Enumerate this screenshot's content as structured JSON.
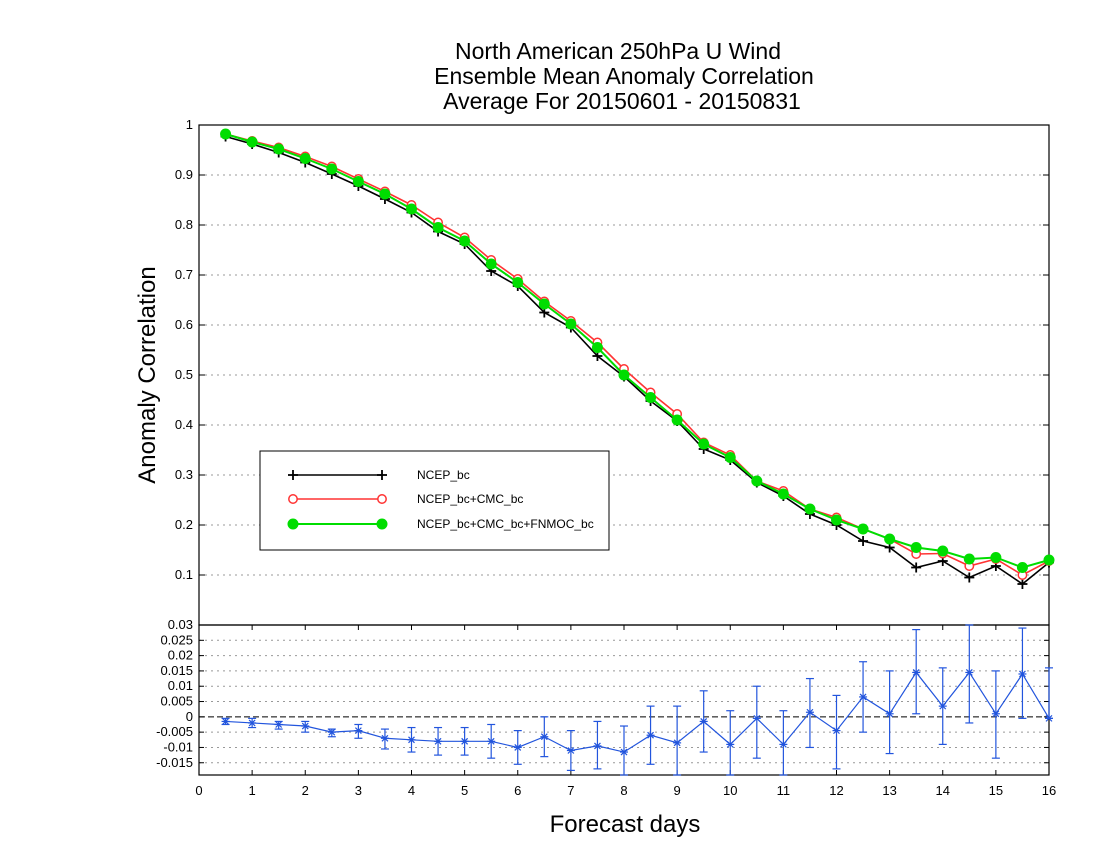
{
  "title_lines": [
    "North American 250hPa U Wind",
    "Ensemble Mean Anomaly Correlation",
    "Average For 20150601 - 20150831"
  ],
  "colors": {
    "ncep": "#000000",
    "cmc": "#ff3333",
    "fnmoc": "#00dd00",
    "diff": "#2255dd",
    "grid": "#999999"
  },
  "chart_data": [
    {
      "type": "line",
      "xlabel": "",
      "ylabel": "Anomaly Correlation",
      "xlim": [
        0,
        16
      ],
      "ylim": [
        0,
        1
      ],
      "yticks": [
        "0.1",
        "0.2",
        "0.3",
        "0.4",
        "0.5",
        "0.6",
        "0.7",
        "0.8",
        "0.9",
        "1"
      ],
      "grid": true,
      "legend_position": "left-middle",
      "x": [
        0.5,
        1,
        1.5,
        2,
        2.5,
        3,
        3.5,
        4,
        4.5,
        5,
        5.5,
        6,
        6.5,
        7,
        7.5,
        8,
        8.5,
        9,
        9.5,
        10,
        10.5,
        11,
        11.5,
        12,
        12.5,
        13,
        13.5,
        14,
        14.5,
        15,
        15.5,
        16
      ],
      "series": [
        {
          "name": "NCEP_bc",
          "marker": "plus",
          "values": [
            0.977,
            0.962,
            0.945,
            0.925,
            0.902,
            0.878,
            0.852,
            0.825,
            0.787,
            0.762,
            0.708,
            0.678,
            0.625,
            0.595,
            0.538,
            0.497,
            0.448,
            0.408,
            0.352,
            0.33,
            0.285,
            0.258,
            0.222,
            0.2,
            0.168,
            0.155,
            0.115,
            0.128,
            0.095,
            0.118,
            0.082,
            0.125
          ]
        },
        {
          "name": "NCEP_bc+CMC_bc",
          "marker": "open-circle",
          "values": [
            0.982,
            0.968,
            0.955,
            0.937,
            0.917,
            0.892,
            0.867,
            0.84,
            0.805,
            0.775,
            0.73,
            0.692,
            0.647,
            0.608,
            0.565,
            0.512,
            0.465,
            0.422,
            0.365,
            0.34,
            0.288,
            0.268,
            0.232,
            0.215,
            0.192,
            0.172,
            0.142,
            0.143,
            0.118,
            0.132,
            0.1,
            0.128
          ]
        },
        {
          "name": "NCEP_bc+CMC_bc+FNMOC_bc",
          "marker": "filled-circle",
          "values": [
            0.982,
            0.966,
            0.952,
            0.933,
            0.912,
            0.887,
            0.862,
            0.832,
            0.795,
            0.768,
            0.722,
            0.685,
            0.642,
            0.602,
            0.555,
            0.5,
            0.455,
            0.41,
            0.362,
            0.335,
            0.288,
            0.262,
            0.232,
            0.21,
            0.192,
            0.172,
            0.155,
            0.148,
            0.132,
            0.135,
            0.115,
            0.13
          ]
        }
      ]
    },
    {
      "type": "line",
      "xlabel": "Forecast days",
      "ylabel": "",
      "xlim": [
        0,
        16
      ],
      "ylim": [
        -0.019,
        0.03
      ],
      "xticks": [
        "0",
        "1",
        "2",
        "3",
        "4",
        "5",
        "6",
        "7",
        "8",
        "9",
        "10",
        "11",
        "12",
        "13",
        "14",
        "15",
        "16"
      ],
      "yticks": [
        "-0.015",
        "-0.01",
        "-0.005",
        "0",
        "0.005",
        "0.01",
        "0.015",
        "0.02",
        "0.025",
        "0.03"
      ],
      "grid": true,
      "x": [
        0.5,
        1,
        1.5,
        2,
        2.5,
        3,
        3.5,
        4,
        4.5,
        5,
        5.5,
        6,
        6.5,
        7,
        7.5,
        8,
        8.5,
        9,
        9.5,
        10,
        10.5,
        11,
        11.5,
        12,
        12.5,
        13,
        13.5,
        14,
        14.5,
        15,
        15.5,
        16
      ],
      "series": [
        {
          "marker": "star",
          "values": [
            -0.0015,
            -0.002,
            -0.0025,
            -0.003,
            -0.005,
            -0.0045,
            -0.007,
            -0.0075,
            -0.008,
            -0.008,
            -0.008,
            -0.01,
            -0.0065,
            -0.011,
            -0.0095,
            -0.0115,
            -0.006,
            -0.0085,
            -0.0015,
            -0.009,
            -0.0005,
            -0.009,
            0.0015,
            -0.0045,
            0.0065,
            0.001,
            0.0145,
            0.0035,
            0.0145,
            0.001,
            0.014,
            -0.0005
          ],
          "error_low": [
            -0.0025,
            -0.0035,
            -0.004,
            -0.005,
            -0.0065,
            -0.007,
            -0.0105,
            -0.0115,
            -0.0125,
            -0.0125,
            -0.0135,
            -0.0155,
            -0.013,
            -0.0175,
            -0.017,
            -0.019,
            -0.0155,
            -0.019,
            -0.0115,
            -0.019,
            -0.0135,
            -0.019,
            -0.01,
            -0.017,
            -0.005,
            -0.012,
            0.001,
            -0.009,
            -0.002,
            -0.0135,
            -0.0005,
            -0.0005
          ],
          "error_high": [
            -0.0005,
            -0.0005,
            -0.0015,
            -0.0015,
            -0.004,
            -0.0025,
            -0.004,
            -0.0035,
            -0.0035,
            -0.0035,
            -0.0025,
            -0.0045,
            0,
            -0.0045,
            -0.0015,
            -0.003,
            0.0035,
            0.0035,
            0.0085,
            0.002,
            0.01,
            0.002,
            0.0125,
            0.007,
            0.018,
            0.015,
            0.0285,
            0.016,
            0.03,
            0.015,
            0.029,
            0.016
          ]
        }
      ]
    }
  ]
}
